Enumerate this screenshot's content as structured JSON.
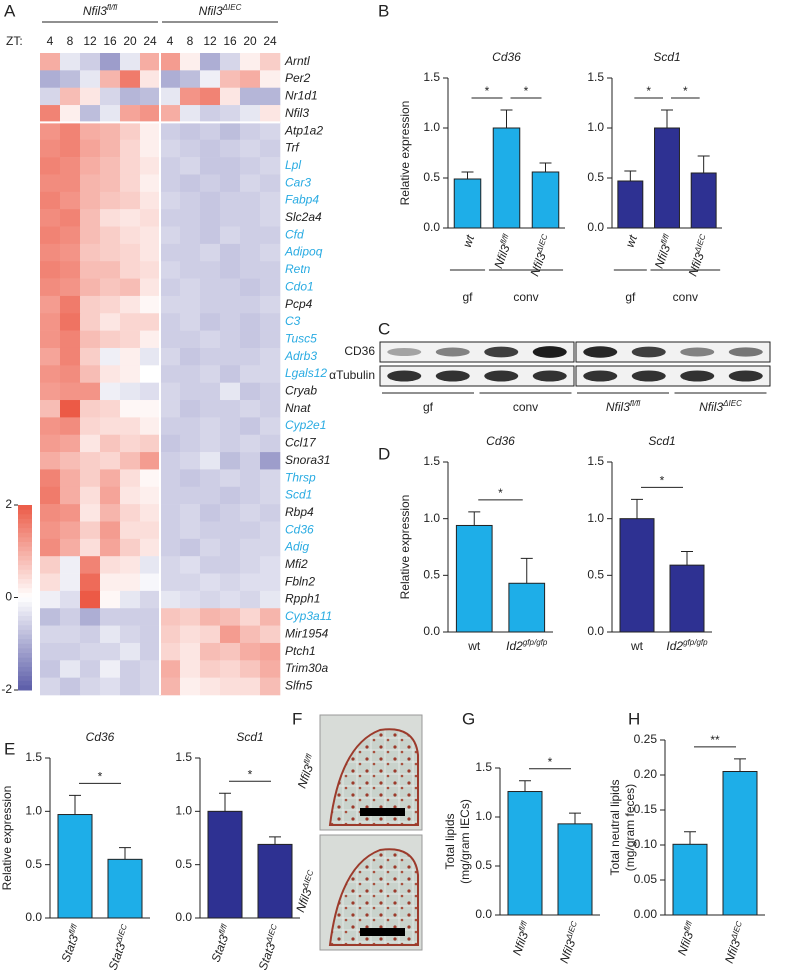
{
  "panel_labels": [
    "A",
    "B",
    "C",
    "D",
    "E",
    "F",
    "G",
    "H"
  ],
  "chart_data": [
    {
      "type": "heatmap",
      "groups": [
        {
          "text": "Nfil3",
          "sup": "fl/fl"
        },
        {
          "text": "Nfil3",
          "sup": "ΔIEC"
        }
      ],
      "x_label": "ZT:",
      "categories": [
        4,
        8,
        12,
        16,
        20,
        24,
        4,
        8,
        12,
        16,
        20,
        24
      ],
      "rows": [
        "Arntl",
        "Per2",
        "Nr1d1",
        "Nfil3",
        "Atp1a2",
        "Trf",
        "Lpl",
        "Car3",
        "Fabp4",
        "Slc2a4",
        "Cfd",
        "Adipoq",
        "Retn",
        "Cdo1",
        "Pcp4",
        "C3",
        "Tusc5",
        "Adrb3",
        "Lgals12",
        "Cryab",
        "Nnat",
        "Cyp2e1",
        "Ccl17",
        "Snora31",
        "Thrsp",
        "Scd1",
        "Rbp4",
        "Cd36",
        "Adig",
        "Mfi2",
        "Fbln2",
        "Rpph1",
        "Cyp3a11",
        "Mir1954",
        "Ptch1",
        "Trim30a",
        "Slfn5"
      ],
      "row_colors": [
        "#222222",
        "#222222",
        "#222222",
        "#222222",
        "#222222",
        "#222222",
        "#29abe2",
        "#29abe2",
        "#29abe2",
        "#222222",
        "#29abe2",
        "#29abe2",
        "#29abe2",
        "#29abe2",
        "#222222",
        "#29abe2",
        "#29abe2",
        "#29abe2",
        "#29abe2",
        "#222222",
        "#222222",
        "#29abe2",
        "#222222",
        "#222222",
        "#29abe2",
        "#29abe2",
        "#222222",
        "#29abe2",
        "#29abe2",
        "#222222",
        "#222222",
        "#222222",
        "#29abe2",
        "#222222",
        "#222222",
        "#222222",
        "#222222"
      ],
      "values": [
        [
          1.0,
          -0.3,
          -0.6,
          -1.2,
          -0.3,
          1.0,
          1.2,
          0.2,
          -1.0,
          -0.5,
          0.2,
          0.6
        ],
        [
          -1.0,
          -0.8,
          -0.3,
          0.9,
          1.6,
          0.3,
          -1.0,
          -0.8,
          -0.2,
          0.8,
          1.0,
          0.2
        ],
        [
          -0.5,
          0.8,
          0.3,
          -0.5,
          -0.9,
          -0.8,
          -0.3,
          1.3,
          1.5,
          0.3,
          -0.9,
          -0.9
        ],
        [
          1.5,
          0.2,
          -0.8,
          -0.3,
          1.1,
          1.3,
          1.0,
          -0.3,
          -0.6,
          -0.5,
          -0.3,
          0.3
        ],
        [
          1.3,
          1.5,
          1.0,
          0.9,
          0.6,
          0.2,
          -0.6,
          -0.7,
          -0.6,
          -0.8,
          -0.6,
          -0.5
        ],
        [
          1.4,
          1.5,
          1.1,
          0.9,
          0.5,
          0.2,
          -0.5,
          -0.6,
          -0.7,
          -0.6,
          -0.5,
          -0.6
        ],
        [
          1.5,
          1.4,
          1.0,
          0.8,
          0.5,
          0.3,
          -0.6,
          -0.5,
          -0.7,
          -0.7,
          -0.6,
          -0.5
        ],
        [
          1.4,
          1.4,
          0.9,
          0.8,
          0.5,
          0.2,
          -0.6,
          -0.7,
          -0.6,
          -0.7,
          -0.5,
          -0.6
        ],
        [
          1.5,
          1.3,
          0.9,
          0.7,
          0.6,
          0.3,
          -0.5,
          -0.6,
          -0.7,
          -0.6,
          -0.6,
          -0.5
        ],
        [
          1.4,
          1.5,
          0.8,
          0.4,
          0.3,
          0.4,
          -0.6,
          -0.6,
          -0.7,
          -0.6,
          -0.6,
          -0.5
        ],
        [
          1.5,
          1.4,
          0.8,
          0.6,
          0.4,
          0.3,
          -0.5,
          -0.6,
          -0.7,
          -0.5,
          -0.6,
          -0.6
        ],
        [
          1.4,
          1.3,
          0.7,
          0.6,
          0.5,
          0.3,
          -0.6,
          -0.6,
          -0.5,
          -0.7,
          -0.6,
          -0.5
        ],
        [
          1.5,
          1.4,
          0.8,
          0.8,
          0.5,
          0.4,
          -0.5,
          -0.6,
          -0.6,
          -0.7,
          -0.6,
          -0.6
        ],
        [
          1.4,
          1.3,
          0.9,
          0.7,
          0.8,
          0.3,
          -0.6,
          -0.5,
          -0.6,
          -0.6,
          -0.7,
          -0.6
        ],
        [
          1.2,
          1.6,
          0.6,
          0.5,
          0.3,
          0.1,
          -0.5,
          -0.5,
          -0.6,
          -0.6,
          -0.6,
          -0.5
        ],
        [
          1.3,
          1.7,
          0.6,
          0.3,
          0.5,
          0.5,
          -0.6,
          -0.5,
          -0.7,
          -0.6,
          -0.7,
          -0.6
        ],
        [
          1.3,
          1.5,
          0.8,
          0.6,
          0.5,
          0.2,
          -0.6,
          -0.6,
          -0.5,
          -0.6,
          -0.7,
          -0.6
        ],
        [
          1.1,
          1.5,
          0.6,
          -0.2,
          0.2,
          -0.3,
          -0.5,
          -0.7,
          -0.6,
          -0.6,
          -0.6,
          -0.5
        ],
        [
          1.3,
          1.4,
          0.8,
          0.3,
          0.2,
          0.0,
          -0.6,
          -0.6,
          -0.5,
          -0.7,
          -0.5,
          -0.5
        ],
        [
          1.2,
          1.3,
          1.3,
          -0.2,
          -0.3,
          -0.4,
          -0.5,
          -0.6,
          -0.6,
          -0.3,
          -0.7,
          -0.6
        ],
        [
          0.8,
          2.0,
          0.6,
          0.5,
          0.1,
          0.1,
          -0.5,
          -0.7,
          -0.6,
          -0.6,
          -0.5,
          -0.6
        ],
        [
          1.3,
          1.4,
          0.5,
          0.4,
          0.4,
          0.2,
          -0.6,
          -0.6,
          -0.5,
          -0.6,
          -0.7,
          -0.5
        ],
        [
          1.2,
          1.1,
          0.3,
          0.7,
          0.5,
          0.6,
          -0.7,
          -0.6,
          -0.5,
          -0.6,
          -0.5,
          -0.6
        ],
        [
          1.0,
          0.8,
          0.6,
          0.5,
          0.8,
          1.2,
          -0.6,
          -0.5,
          -0.3,
          -0.8,
          -0.6,
          -1.2
        ],
        [
          1.5,
          1.0,
          0.6,
          1.0,
          0.4,
          0.1,
          -0.6,
          -0.7,
          -0.6,
          -0.5,
          -0.6,
          -0.5
        ],
        [
          1.6,
          1.0,
          0.4,
          1.1,
          0.3,
          0.2,
          -0.6,
          -0.6,
          -0.6,
          -0.7,
          -0.6,
          -0.5
        ],
        [
          1.4,
          1.3,
          0.3,
          0.9,
          0.5,
          0.3,
          -0.6,
          -0.5,
          -0.7,
          -0.6,
          -0.5,
          -0.6
        ],
        [
          1.3,
          1.1,
          0.6,
          1.2,
          0.4,
          0.4,
          -0.6,
          -0.5,
          -0.6,
          -0.6,
          -0.6,
          -0.5
        ],
        [
          1.4,
          1.0,
          0.4,
          1.1,
          0.6,
          0.3,
          -0.6,
          -0.7,
          -0.5,
          -0.6,
          -0.5,
          -0.5
        ],
        [
          0.6,
          -0.2,
          1.5,
          0.4,
          0.3,
          -0.3,
          -0.5,
          -0.4,
          -0.6,
          -0.6,
          -0.5,
          -0.4
        ],
        [
          0.4,
          -0.2,
          1.8,
          0.2,
          0.2,
          -0.1,
          -0.5,
          -0.5,
          -0.4,
          -0.5,
          -0.4,
          -0.4
        ],
        [
          -0.2,
          -0.4,
          2.0,
          0.1,
          -0.3,
          -0.5,
          -0.3,
          -0.4,
          -0.5,
          -0.4,
          -0.5,
          -0.3
        ],
        [
          -0.8,
          -0.6,
          -1.0,
          -0.6,
          -0.6,
          -0.6,
          0.7,
          0.6,
          0.9,
          0.8,
          0.5,
          0.9
        ],
        [
          -0.5,
          -0.5,
          -0.6,
          -0.3,
          -0.5,
          -0.6,
          0.6,
          0.4,
          0.5,
          1.2,
          0.8,
          0.6
        ],
        [
          -0.6,
          -0.6,
          -0.5,
          -0.5,
          -0.3,
          -0.6,
          0.5,
          0.3,
          0.8,
          0.7,
          1.0,
          1.1
        ],
        [
          -0.7,
          -0.3,
          -0.6,
          -0.2,
          -0.6,
          -0.5,
          1.0,
          0.3,
          0.6,
          0.5,
          0.7,
          1.0
        ],
        [
          -0.5,
          -0.7,
          -0.5,
          -0.4,
          -0.6,
          -0.5,
          0.9,
          0.2,
          0.3,
          0.4,
          0.4,
          0.8
        ]
      ],
      "zlim": [
        -2,
        2
      ],
      "zticks": [
        2,
        0,
        -2
      ],
      "colors": [
        "#5b5ca8",
        "#ffffff",
        "#ec5a46"
      ]
    },
    {
      "type": "bar",
      "title": "Cd36",
      "ylabel": [
        "Relative expression"
      ],
      "color": "#1eaee8",
      "rotate_labels": true,
      "categories": [
        {
          "text": "wt"
        },
        {
          "text": "Nfil3",
          "sup": "fl/fl"
        },
        {
          "text": "Nfil3",
          "sup": "ΔIEC"
        }
      ],
      "values": [
        0.49,
        1.0,
        0.56
      ],
      "errors": [
        0.07,
        0.18,
        0.09
      ],
      "group_of": [
        "gf",
        "conv",
        "conv"
      ],
      "sig": [
        {
          "label": "*",
          "from": 0,
          "to": 1
        },
        {
          "label": "*",
          "from": 1,
          "to": 2
        }
      ],
      "ylim": [
        0,
        1.5
      ],
      "yticks": [
        {
          "value": 0,
          "label": "0.0"
        },
        {
          "value": 0.5,
          "label": "0.5"
        },
        {
          "value": 1,
          "label": "1.0"
        },
        {
          "value": 1.5,
          "label": "1.5"
        }
      ]
    },
    {
      "type": "bar",
      "title": "Scd1",
      "color": "#2e3192",
      "rotate_labels": true,
      "categories": [
        {
          "text": "wt"
        },
        {
          "text": "Nfil3",
          "sup": "fl/fl"
        },
        {
          "text": "Nfil3",
          "sup": "ΔIEC"
        }
      ],
      "values": [
        0.47,
        1.0,
        0.55
      ],
      "errors": [
        0.1,
        0.18,
        0.17
      ],
      "group_of": [
        "gf",
        "conv",
        "conv"
      ],
      "sig": [
        {
          "label": "*",
          "from": 0,
          "to": 1
        },
        {
          "label": "*",
          "from": 1,
          "to": 2
        }
      ],
      "ylim": [
        0,
        1.5
      ],
      "yticks": [
        {
          "value": 0,
          "label": "0.0"
        },
        {
          "value": 0.5,
          "label": "0.5"
        },
        {
          "value": 1,
          "label": "1.0"
        },
        {
          "value": 1.5,
          "label": "1.5"
        }
      ]
    },
    {
      "type": "bar",
      "title": "Cd36",
      "ylabel": [
        "Relative expression"
      ],
      "color": "#1eaee8",
      "rotate_labels": false,
      "categories": [
        {
          "text": "wt"
        },
        {
          "text": "Id2",
          "sup": "gfp/gfp"
        }
      ],
      "values": [
        0.94,
        0.43
      ],
      "errors": [
        0.12,
        0.22
      ],
      "sig": [
        {
          "label": "*",
          "from": 0,
          "to": 1
        }
      ],
      "ylim": [
        0,
        1.5
      ],
      "yticks": [
        {
          "value": 0,
          "label": "0.0"
        },
        {
          "value": 0.5,
          "label": "0.5"
        },
        {
          "value": 1,
          "label": "1.0"
        },
        {
          "value": 1.5,
          "label": "1.5"
        }
      ]
    },
    {
      "type": "bar",
      "title": "Scd1",
      "color": "#2e3192",
      "rotate_labels": false,
      "categories": [
        {
          "text": "wt"
        },
        {
          "text": "Id2",
          "sup": "gfp/gfp"
        }
      ],
      "values": [
        1.0,
        0.59
      ],
      "errors": [
        0.17,
        0.12
      ],
      "sig": [
        {
          "label": "*",
          "from": 0,
          "to": 1
        }
      ],
      "ylim": [
        0,
        1.5
      ],
      "yticks": [
        {
          "value": 0,
          "label": "0.0"
        },
        {
          "value": 0.5,
          "label": "0.5"
        },
        {
          "value": 1,
          "label": "1.0"
        },
        {
          "value": 1.5,
          "label": "1.5"
        }
      ]
    },
    {
      "type": "bar",
      "title": "Cd36",
      "ylabel": [
        "Relative expression"
      ],
      "color": "#1eaee8",
      "rotate_labels": true,
      "categories": [
        {
          "text": "Stat3",
          "sup": "fl/fl"
        },
        {
          "text": "Stat3",
          "sup": "ΔIEC"
        }
      ],
      "values": [
        0.97,
        0.55
      ],
      "errors": [
        0.18,
        0.11
      ],
      "sig": [
        {
          "label": "*",
          "from": 0,
          "to": 1
        }
      ],
      "ylim": [
        0,
        1.5
      ],
      "yticks": [
        {
          "value": 0,
          "label": "0.0"
        },
        {
          "value": 0.5,
          "label": "0.5"
        },
        {
          "value": 1,
          "label": "1.0"
        },
        {
          "value": 1.5,
          "label": "1.5"
        }
      ]
    },
    {
      "type": "bar",
      "title": "Scd1",
      "color": "#2e3192",
      "rotate_labels": true,
      "categories": [
        {
          "text": "Stat3",
          "sup": "fl/fl"
        },
        {
          "text": "Stat3",
          "sup": "ΔIEC"
        }
      ],
      "values": [
        1.0,
        0.69
      ],
      "errors": [
        0.17,
        0.07
      ],
      "sig": [
        {
          "label": "*",
          "from": 0,
          "to": 1
        }
      ],
      "ylim": [
        0,
        1.5
      ],
      "yticks": [
        {
          "value": 0,
          "label": "0.0"
        },
        {
          "value": 0.5,
          "label": "0.5"
        },
        {
          "value": 1,
          "label": "1.0"
        },
        {
          "value": 1.5,
          "label": "1.5"
        }
      ]
    },
    {
      "type": "bar",
      "ylabel": [
        "Total lipids",
        "(mg/gram IECs)"
      ],
      "color": "#1eaee8",
      "rotate_labels": true,
      "categories": [
        {
          "text": "Nfil3",
          "sup": "fl/fl"
        },
        {
          "text": "Nfil3",
          "sup": "ΔIEC"
        }
      ],
      "values": [
        1.26,
        0.93
      ],
      "errors": [
        0.11,
        0.11
      ],
      "sig": [
        {
          "label": "*",
          "from": 0,
          "to": 1
        }
      ],
      "ylim": [
        0,
        1.5
      ],
      "yticks": [
        {
          "value": 0,
          "label": "0.0"
        },
        {
          "value": 0.5,
          "label": "0.5"
        },
        {
          "value": 1,
          "label": "1.0"
        },
        {
          "value": 1.5,
          "label": "1.5"
        }
      ]
    },
    {
      "type": "bar",
      "ylabel": [
        "Total neutral lipids",
        "(mg/gram feces)"
      ],
      "color": "#1eaee8",
      "rotate_labels": true,
      "categories": [
        {
          "text": "Nfil3",
          "sup": "fl/fl"
        },
        {
          "text": "Nfil3",
          "sup": "ΔIEC"
        }
      ],
      "values": [
        0.101,
        0.205
      ],
      "errors": [
        0.018,
        0.018
      ],
      "sig": [
        {
          "label": "**",
          "from": 0,
          "to": 1
        }
      ],
      "ylim": [
        0,
        0.25
      ],
      "yticks": [
        {
          "value": 0,
          "label": "0.00"
        },
        {
          "value": 0.05,
          "label": "0.05"
        },
        {
          "value": 0.1,
          "label": "0.10"
        },
        {
          "value": 0.15,
          "label": "0.15"
        },
        {
          "value": 0.2,
          "label": "0.20"
        },
        {
          "value": 0.25,
          "label": "0.25"
        }
      ]
    }
  ],
  "blot": {
    "rows": [
      "CD36",
      "αTubulin"
    ],
    "groups": [
      {
        "text": "gf"
      },
      {
        "text": "conv"
      },
      {
        "text": "Nfil3",
        "sup": "fl/fl"
      },
      {
        "text": "Nfil3",
        "sup": "ΔIEC"
      }
    ]
  },
  "histology": {
    "labels": [
      {
        "text": "Nfil3",
        "sup": "fl/fl"
      },
      {
        "text": "Nfil3",
        "sup": "ΔIEC"
      }
    ]
  }
}
